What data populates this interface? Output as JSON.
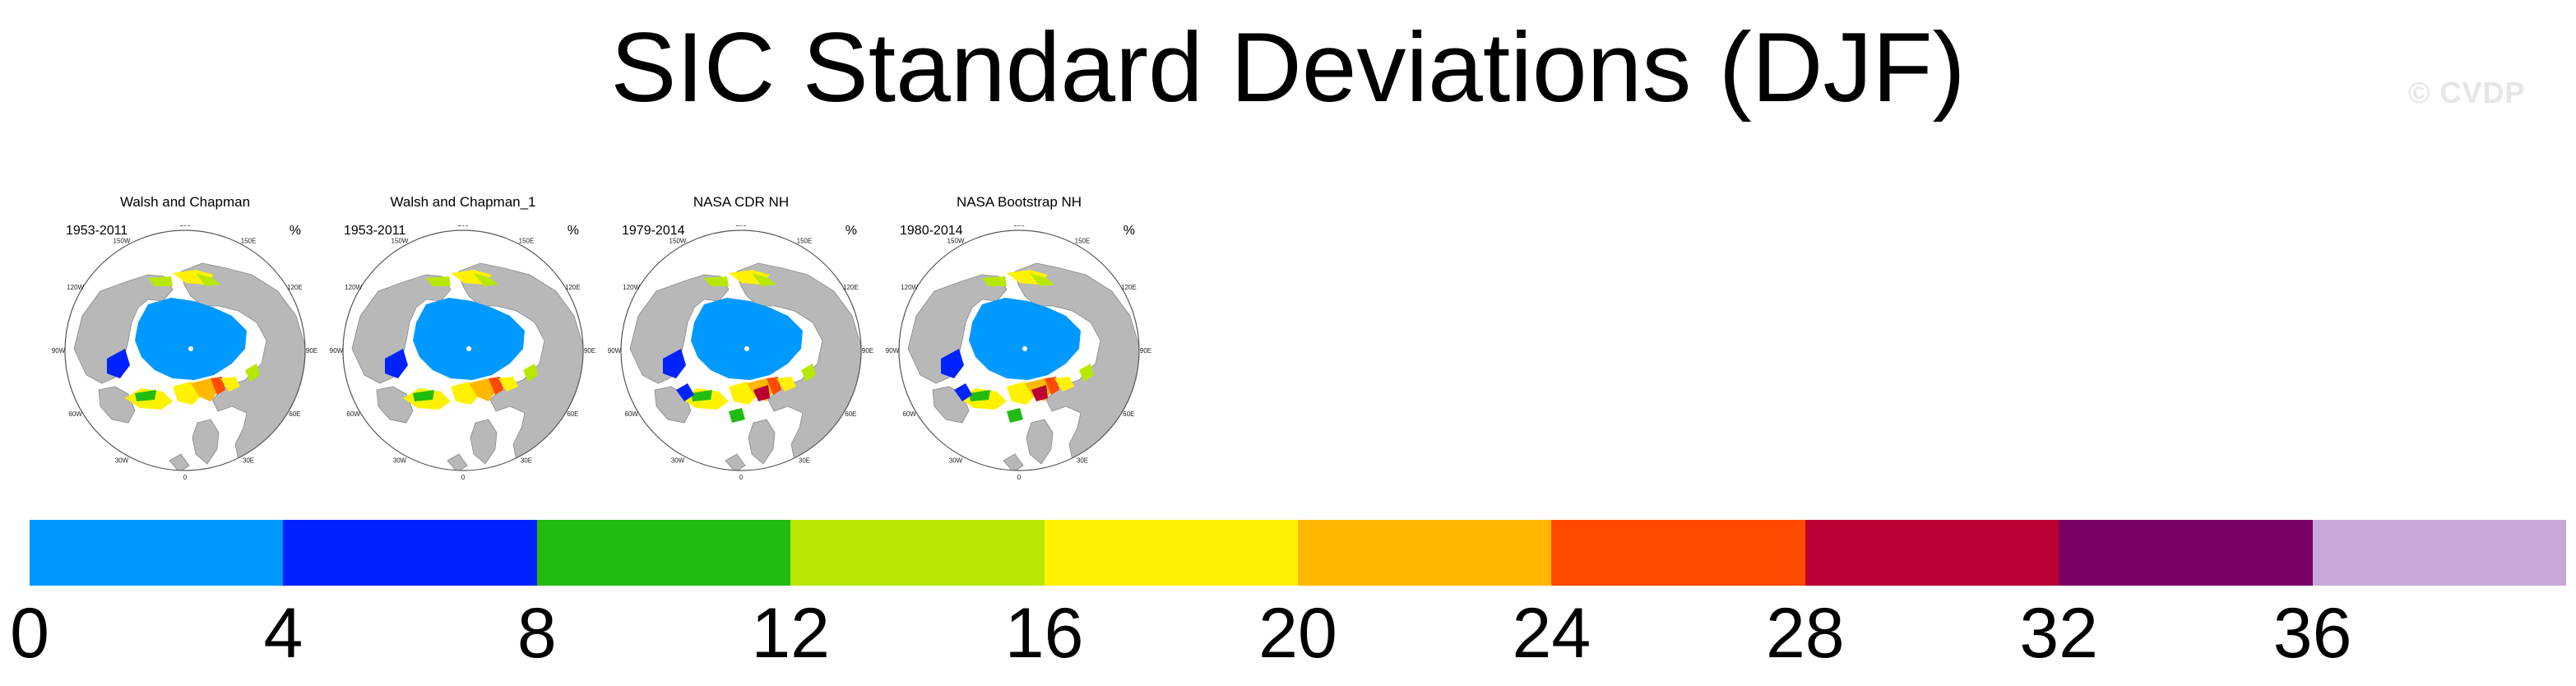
{
  "title": "SIC Standard Deviations (DJF)",
  "watermark": "© CVDP",
  "panels": [
    {
      "name": "Walsh and Chapman",
      "period": "1953-2011",
      "unit": "%"
    },
    {
      "name": "Walsh and Chapman_1",
      "period": "1953-2011",
      "unit": "%"
    },
    {
      "name": "NASA CDR NH",
      "period": "1979-2014",
      "unit": "%"
    },
    {
      "name": "NASA Bootstrap NH",
      "period": "1980-2014",
      "unit": "%"
    }
  ],
  "lon_labels": [
    "180",
    "150E",
    "120E",
    "90E",
    "60E",
    "30E",
    "0",
    "30W",
    "60W",
    "90W",
    "120W",
    "150W"
  ],
  "colorbar": {
    "colors": [
      "#0099ff",
      "#0022ff",
      "#22bb11",
      "#b8e800",
      "#fff200",
      "#ffb700",
      "#ff4a00",
      "#bb0033",
      "#7a0066",
      "#c8a8d8"
    ],
    "ticks": [
      "0",
      "4",
      "8",
      "12",
      "16",
      "20",
      "24",
      "28",
      "32",
      "36"
    ]
  }
}
